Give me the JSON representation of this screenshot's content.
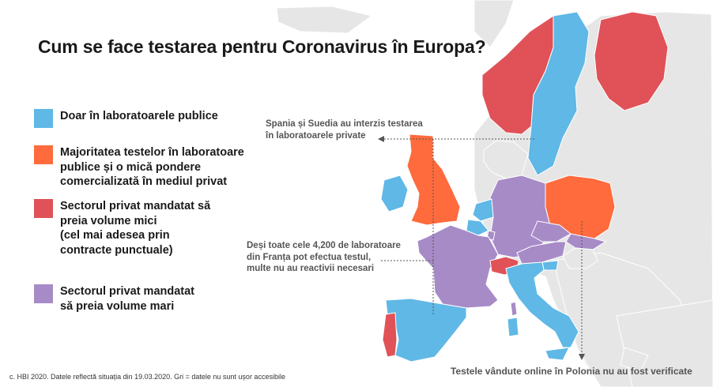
{
  "title": "Cum se face testarea pentru Coronavirus în Europa?",
  "legend": [
    {
      "label": "Doar în laboratoarele publice",
      "color": "#5fb8e6"
    },
    {
      "label": "Majoritatea testelor în laboratoare\npublice și o mică pondere\ncomercializată în mediul privat",
      "color": "#ff6b3d"
    },
    {
      "label": "Sectorul privat mandatat să\npreia volume mici\n(cel mai adesea prin\ncontracte punctuale)",
      "color": "#e05258"
    },
    {
      "label": "Sectorul privat mandatat\nsă preia volume mari",
      "color": "#a78bc7"
    }
  ],
  "annotations": {
    "spain_sweden": "Spania și Suedia au interzis testarea\nîn laboratoarele private",
    "france": "Deși toate cele 4,200 de laboratoare\ndin Franța pot efectua testul,\nmulte nu au reactivii necesari",
    "poland": "Testele vândute online în Polonia nu au fost verificate"
  },
  "footnote": "c. HBI 2020. Datele reflectă situația din 19.03.2020. Gri = datele nu sunt ușor accesibile",
  "map_colors": {
    "no_data": "#e6e6e6",
    "border": "#ffffff",
    "public_only": "#5fb8e6",
    "mostly_public": "#ff6b3d",
    "private_small": "#e05258",
    "private_large": "#a78bc7",
    "annotation_line": "#555555"
  },
  "countries": [
    {
      "name": "Norway",
      "category": "private_small"
    },
    {
      "name": "Sweden",
      "category": "public_only"
    },
    {
      "name": "Finland",
      "category": "private_small"
    },
    {
      "name": "United Kingdom",
      "category": "mostly_public"
    },
    {
      "name": "Ireland",
      "category": "public_only"
    },
    {
      "name": "Poland",
      "category": "mostly_public"
    },
    {
      "name": "Germany",
      "category": "private_large"
    },
    {
      "name": "France",
      "category": "private_large"
    },
    {
      "name": "Spain",
      "category": "public_only"
    },
    {
      "name": "Portugal",
      "category": "private_small"
    },
    {
      "name": "Switzerland",
      "category": "private_small"
    },
    {
      "name": "Italy",
      "category": "public_only"
    },
    {
      "name": "Belgium",
      "category": "public_only"
    },
    {
      "name": "Netherlands",
      "category": "public_only"
    },
    {
      "name": "Czechia",
      "category": "private_large"
    },
    {
      "name": "Austria",
      "category": "private_large"
    },
    {
      "name": "Slovakia",
      "category": "private_large"
    },
    {
      "name": "Luxembourg",
      "category": "private_large"
    },
    {
      "name": "Slovenia",
      "category": "public_only"
    },
    {
      "name": "Hungary",
      "category": "no_data"
    },
    {
      "name": "Corsica",
      "category": "private_large"
    },
    {
      "name": "Sardinia",
      "category": "public_only"
    },
    {
      "name": "Sicily",
      "category": "public_only"
    }
  ]
}
